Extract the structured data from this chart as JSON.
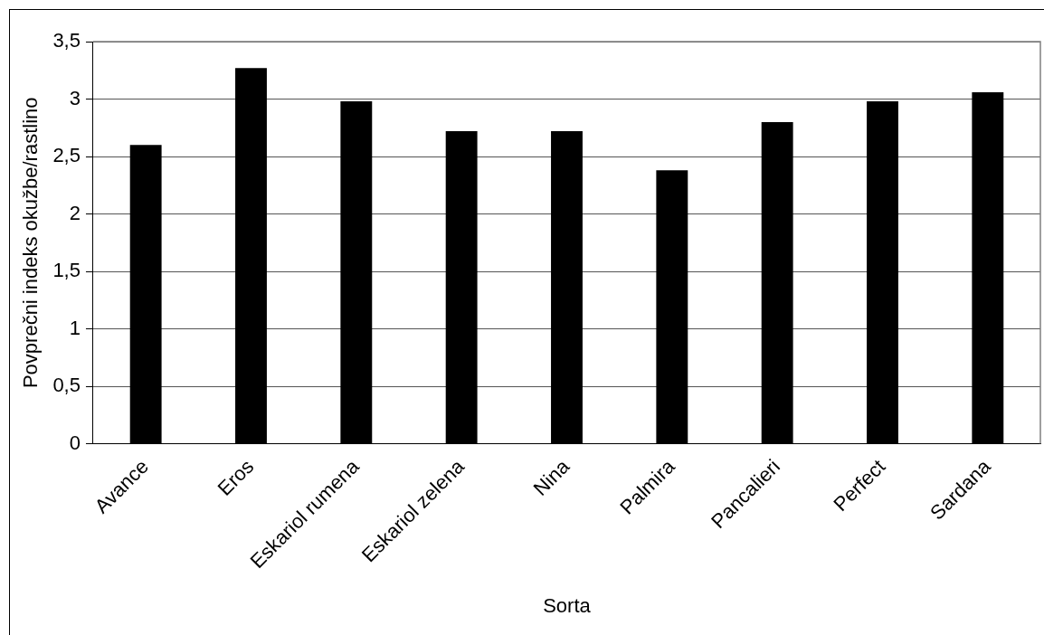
{
  "chart_data": {
    "type": "bar",
    "xlabel": "Sorta",
    "ylabel": "Povprečni indeks okužbe/rastlino",
    "categories": [
      "Avance",
      "Eros",
      "Eskariol rumena",
      "Eskariol zelena",
      "Nina",
      "Palmira",
      "Pancalieri",
      "Perfect",
      "Sardana"
    ],
    "values": [
      2.6,
      3.27,
      2.98,
      2.72,
      2.72,
      2.38,
      2.8,
      2.98,
      3.06
    ],
    "color": "#000000",
    "ylim": [
      0,
      3.5
    ],
    "yticks": [
      0,
      {
        "value": 0.5,
        "label": "0,5"
      },
      1,
      {
        "value": 1.5,
        "label": "1,5"
      },
      2,
      {
        "value": 2.5,
        "label": "2,5"
      },
      3,
      {
        "value": 3.5,
        "label": "3,5"
      }
    ],
    "grid": "y",
    "legend": false
  }
}
